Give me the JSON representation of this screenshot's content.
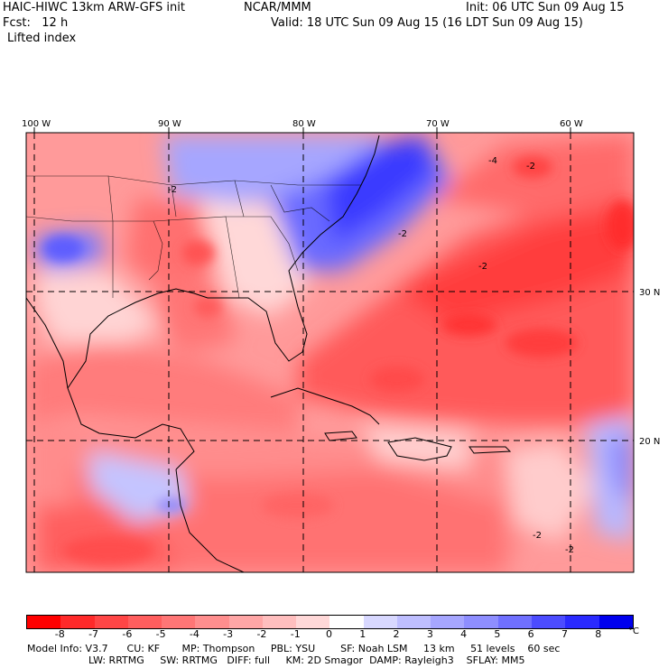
{
  "header": {
    "model_title": "HAIC-HIWC 13km ARW-GFS init",
    "org": "NCAR/MMM",
    "init": "Init: 06 UTC Sun 09 Aug 15",
    "fcst": "Fcst:   12 h",
    "valid": "Valid: 18 UTC Sun 09 Aug 15 (16 LDT Sun 09 Aug 15)",
    "field": "Lifted index"
  },
  "map": {
    "lon_labels": [
      "100 W",
      "90 W",
      "80 W",
      "70 W",
      "60 W"
    ],
    "lat_labels": [
      "30 N",
      "20 N"
    ],
    "contour_labels": [
      "-4",
      "-2",
      "-2",
      "-2",
      "-2",
      "-2",
      "-2"
    ]
  },
  "colorbar": {
    "ticks": [
      "-8",
      "-7",
      "-6",
      "-5",
      "-4",
      "-3",
      "-2",
      "-1",
      "0",
      "1",
      "2",
      "3",
      "4",
      "5",
      "6",
      "7",
      "8"
    ],
    "unit": "°C",
    "colors": [
      "#ff0000",
      "#ff2a2a",
      "#ff4646",
      "#ff5e5e",
      "#ff7676",
      "#ff8e8e",
      "#ffa6a6",
      "#ffbebe",
      "#ffd8d8",
      "#ffffff",
      "#d8d8ff",
      "#bebeff",
      "#a6a6ff",
      "#8e8eff",
      "#7070ff",
      "#4c4cff",
      "#2a2aff",
      "#0000ee"
    ]
  },
  "model_info": {
    "line1": "Model Info: V3.7      CU: KF       MP: Thompson     PBL: YSU        SF: Noah LSM     13 km     51 levels    60 sec",
    "line2": "LW: RRTMG     SW: RRTMG   DIFF: full     KM: 2D Smagor  DAMP: Rayleigh3    SFLAY: MM5"
  }
}
